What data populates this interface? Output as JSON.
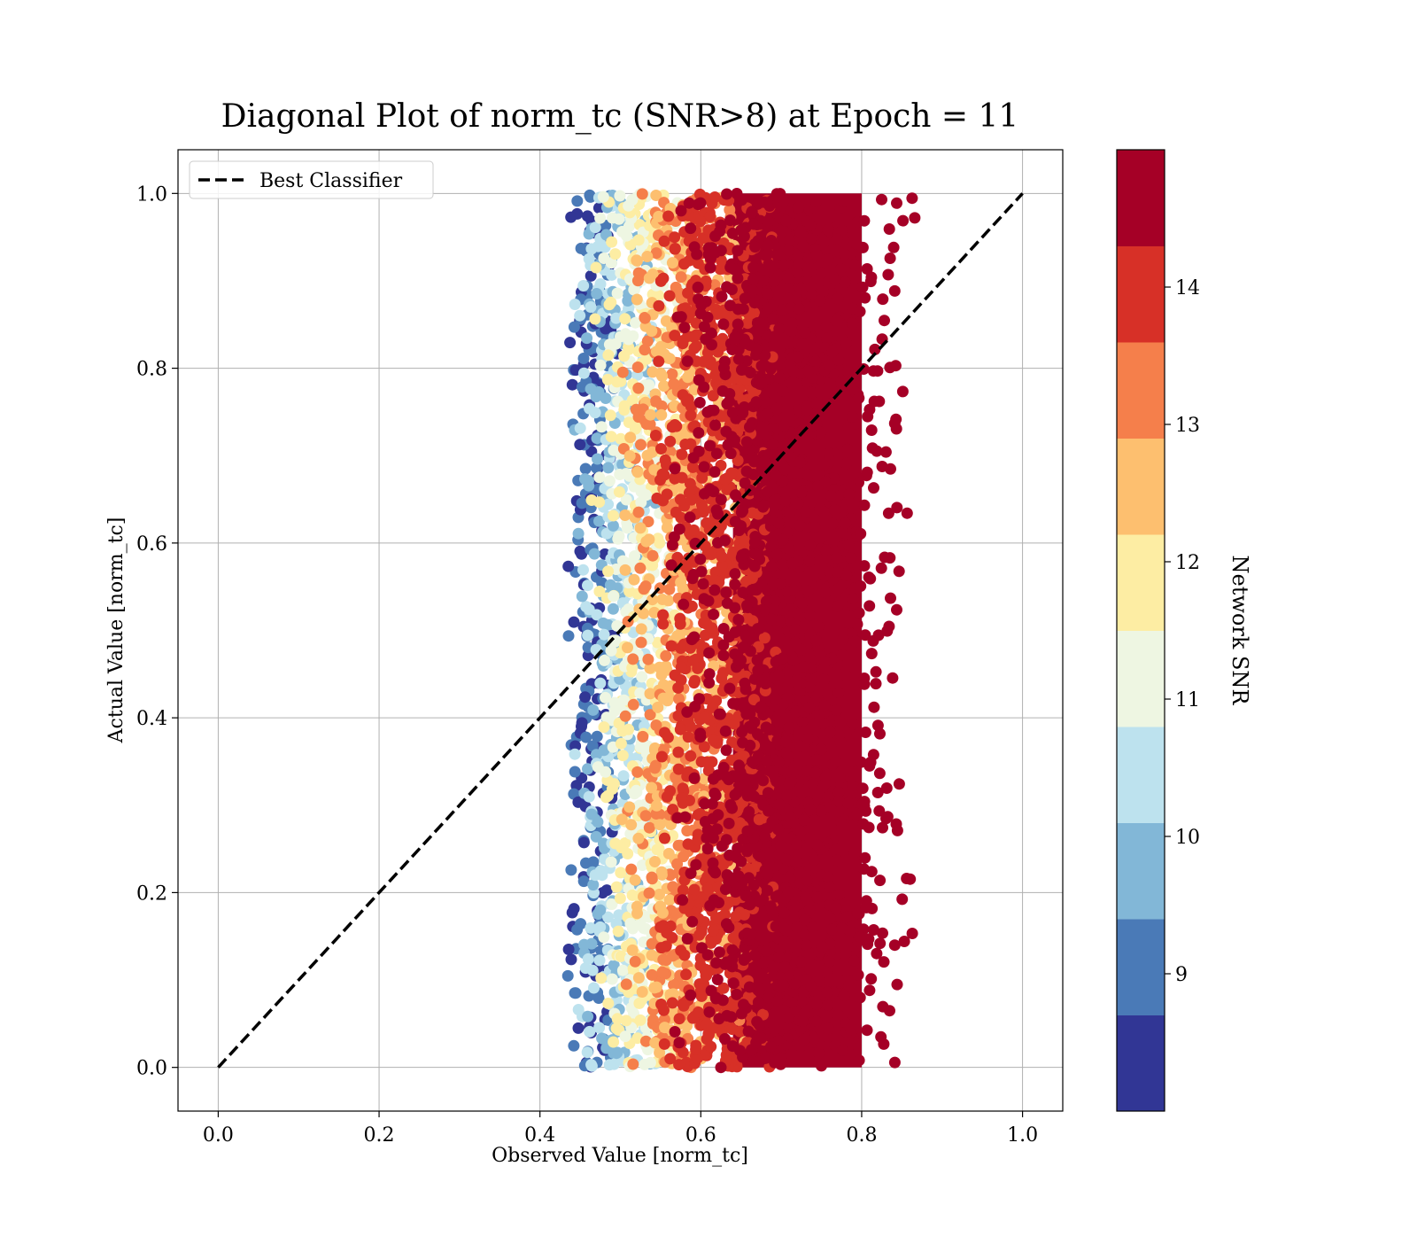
{
  "chart_data": {
    "type": "scatter",
    "title": "Diagonal Plot of norm_tc (SNR>8) at Epoch = 11",
    "xlabel": "Observed Value [norm_tc]",
    "ylabel": "Actual Value [norm_tc]",
    "xlim": [
      -0.05,
      1.05
    ],
    "ylim": [
      -0.05,
      1.05
    ],
    "xticks": [
      "0.0",
      "0.2",
      "0.4",
      "0.6",
      "0.8",
      "1.0"
    ],
    "yticks": [
      "0.0",
      "0.2",
      "0.4",
      "0.6",
      "0.8",
      "1.0"
    ],
    "grid": true,
    "legend": {
      "position": "upper-left",
      "entries": [
        {
          "label": "Best Classifier",
          "style": "dashed",
          "color": "#000000"
        }
      ]
    },
    "reference_line": {
      "label": "Best Classifier",
      "x": [
        0.0,
        1.0
      ],
      "y": [
        0.0,
        1.0
      ],
      "style": "dashed",
      "color": "#000000"
    },
    "colorbar": {
      "label": "Network SNR",
      "range": [
        8,
        15
      ],
      "ticks": [
        "9",
        "10",
        "11",
        "12",
        "13",
        "14"
      ],
      "tick_values": [
        9,
        10,
        11,
        12,
        13,
        14
      ],
      "colormap": "RdYlBu_r",
      "levels": 10,
      "colors": [
        "#313695",
        "#4a7ab7",
        "#82b7d7",
        "#bde2ee",
        "#eef6e2",
        "#fdeda3",
        "#fdbf6f",
        "#f57f4b",
        "#d73027",
        "#a50026"
      ]
    },
    "series": [
      {
        "distribution": "vertical band of predictions, observed value roughly 0.43-0.87 across the full actual range 0.0-1.0; color increases with observed value",
        "snr_bands": [
          {
            "snr_range": [
              8.0,
              9.4
            ],
            "x_range": [
              0.43,
              0.5
            ]
          },
          {
            "snr_range": [
              9.4,
              10.8
            ],
            "x_range": [
              0.44,
              0.55
            ]
          },
          {
            "snr_range": [
              10.8,
              12.2
            ],
            "x_range": [
              0.46,
              0.6
            ]
          },
          {
            "snr_range": [
              12.2,
              13.6
            ],
            "x_range": [
              0.5,
              0.66
            ]
          },
          {
            "snr_range": [
              13.6,
              14.3
            ],
            "x_range": [
              0.54,
              0.7
            ]
          },
          {
            "snr_range": [
              14.3,
              15.0
            ],
            "x_range": [
              0.56,
              0.87
            ]
          }
        ],
        "y_range": [
          0.0,
          1.0
        ],
        "dense_core": {
          "x_range": [
            0.64,
            0.8
          ],
          "y_range": [
            0.0,
            1.0
          ],
          "snr": 15
        }
      }
    ]
  }
}
